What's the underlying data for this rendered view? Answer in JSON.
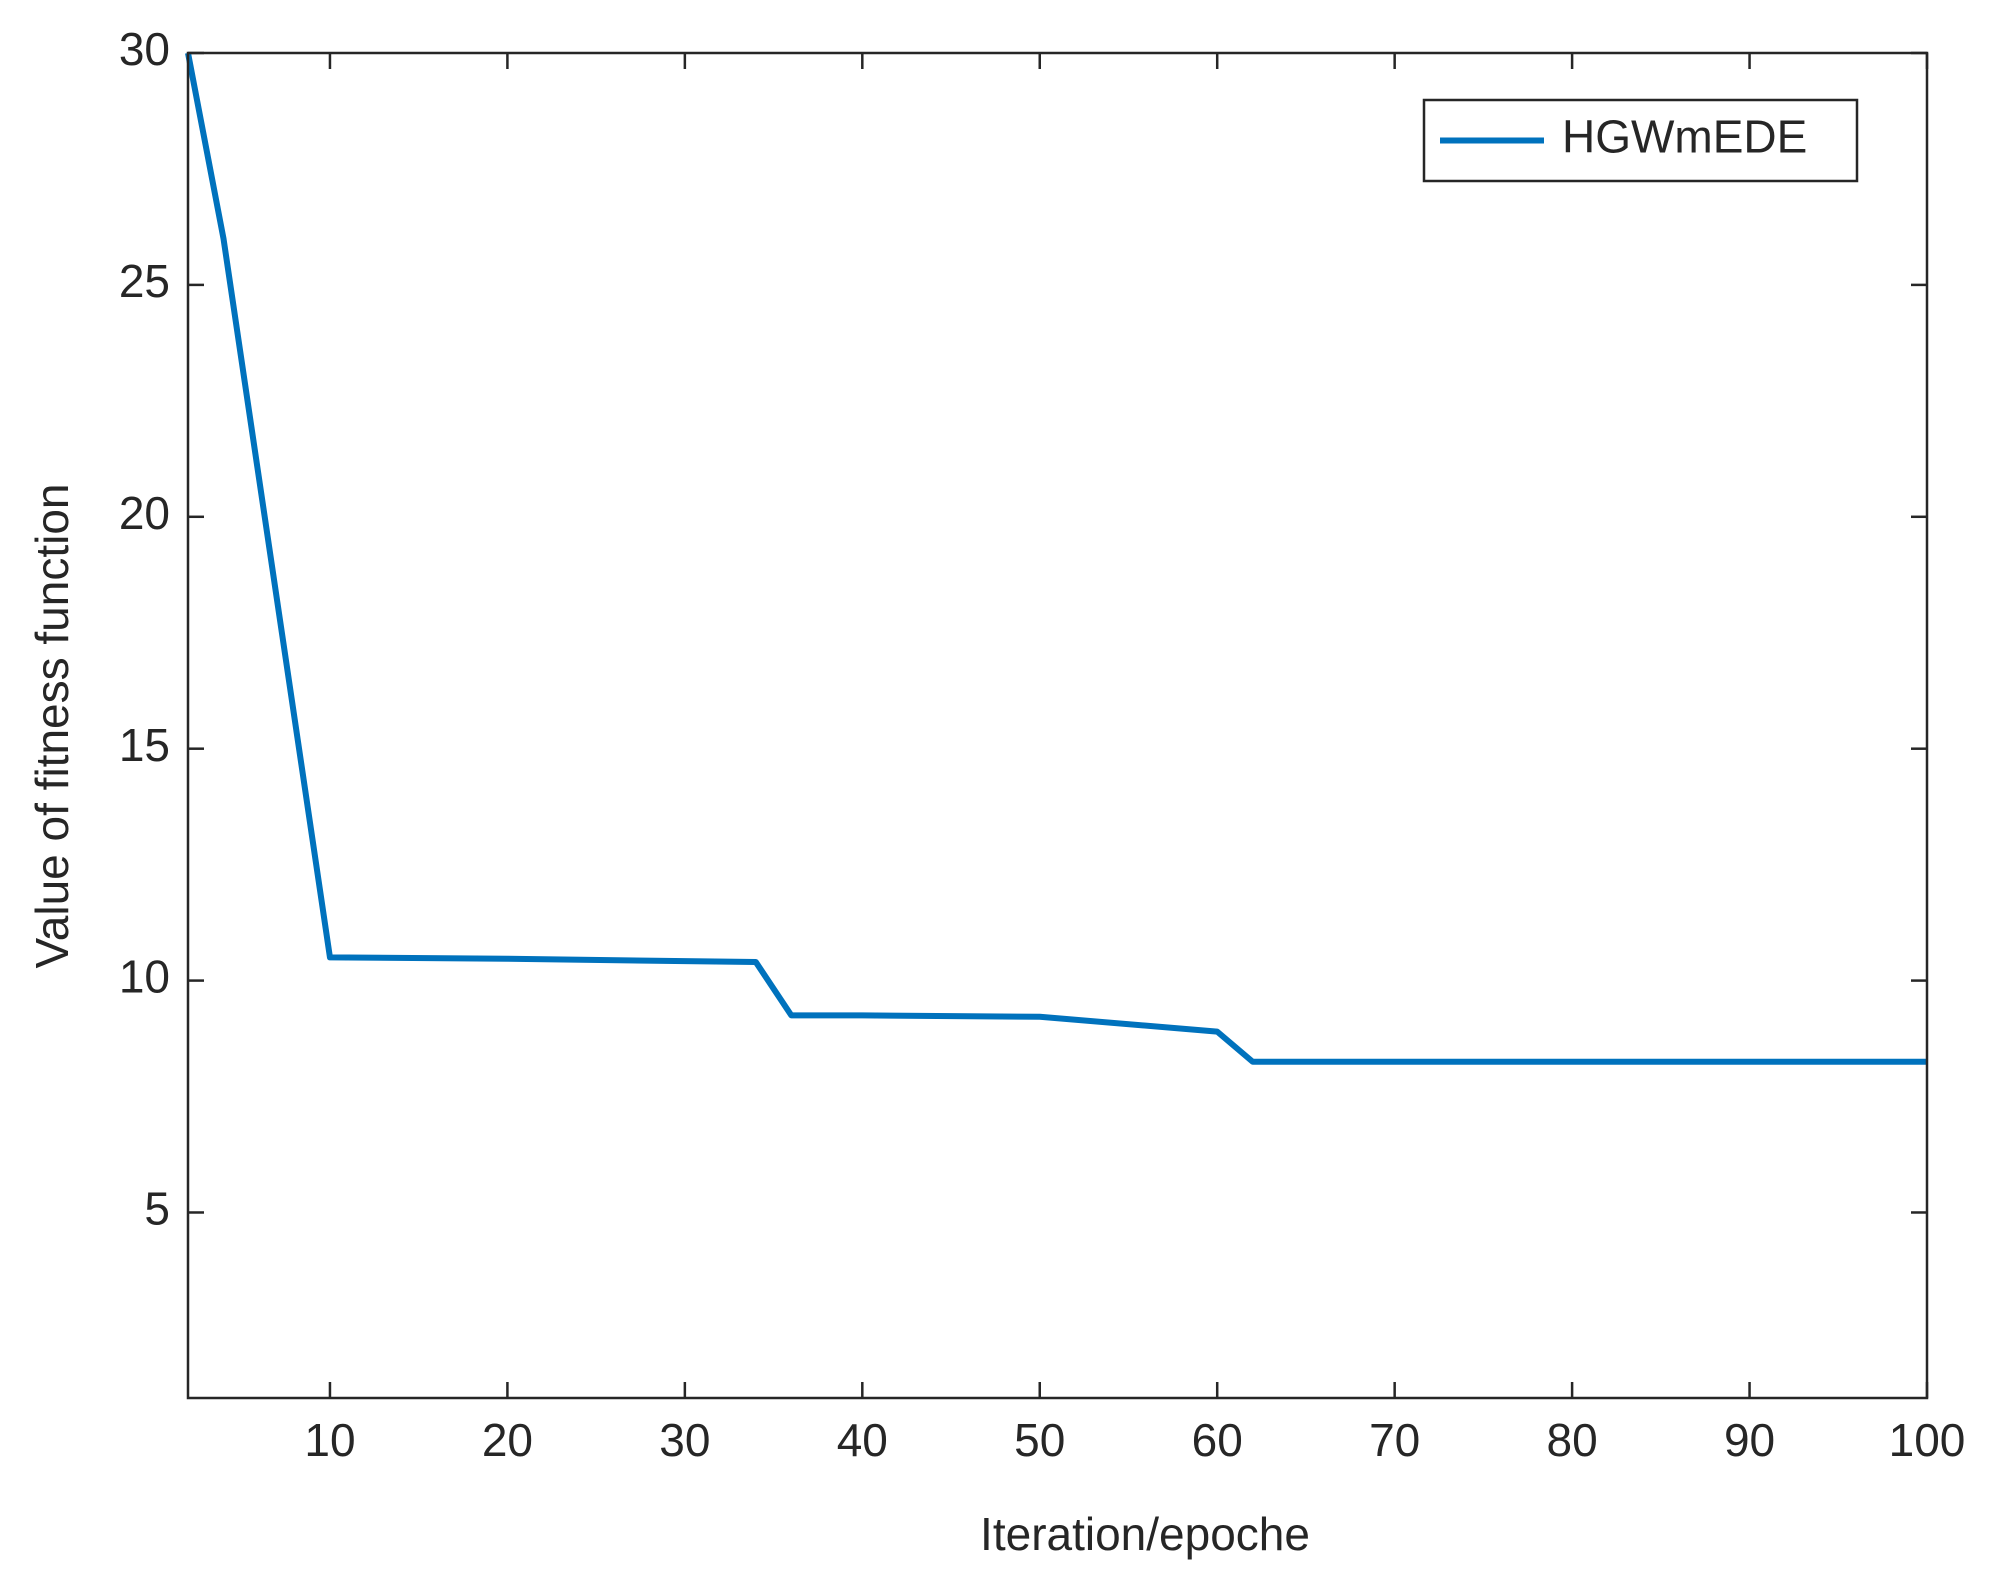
{
  "chart_data": {
    "type": "line",
    "xlabel": "Iteration/epoche",
    "ylabel": "Value of fitness function",
    "x": [
      2,
      4,
      10,
      20,
      30,
      34,
      36,
      40,
      50,
      60,
      62,
      70,
      80,
      90,
      100
    ],
    "series": [
      {
        "name": "HGWmEDE",
        "color": "#0072bd",
        "values": [
          30,
          26,
          10.5,
          10.47,
          10.42,
          10.4,
          9.25,
          9.25,
          9.22,
          8.9,
          8.25,
          8.25,
          8.25,
          8.25,
          8.25
        ]
      }
    ],
    "xlim": [
      2,
      100
    ],
    "xticks": [
      10,
      20,
      30,
      40,
      50,
      60,
      70,
      80,
      90,
      100
    ],
    "ylim": [
      1,
      30
    ],
    "yticks": [
      5,
      10,
      15,
      20,
      25,
      30
    ],
    "legend": "top-right",
    "grid": false
  }
}
